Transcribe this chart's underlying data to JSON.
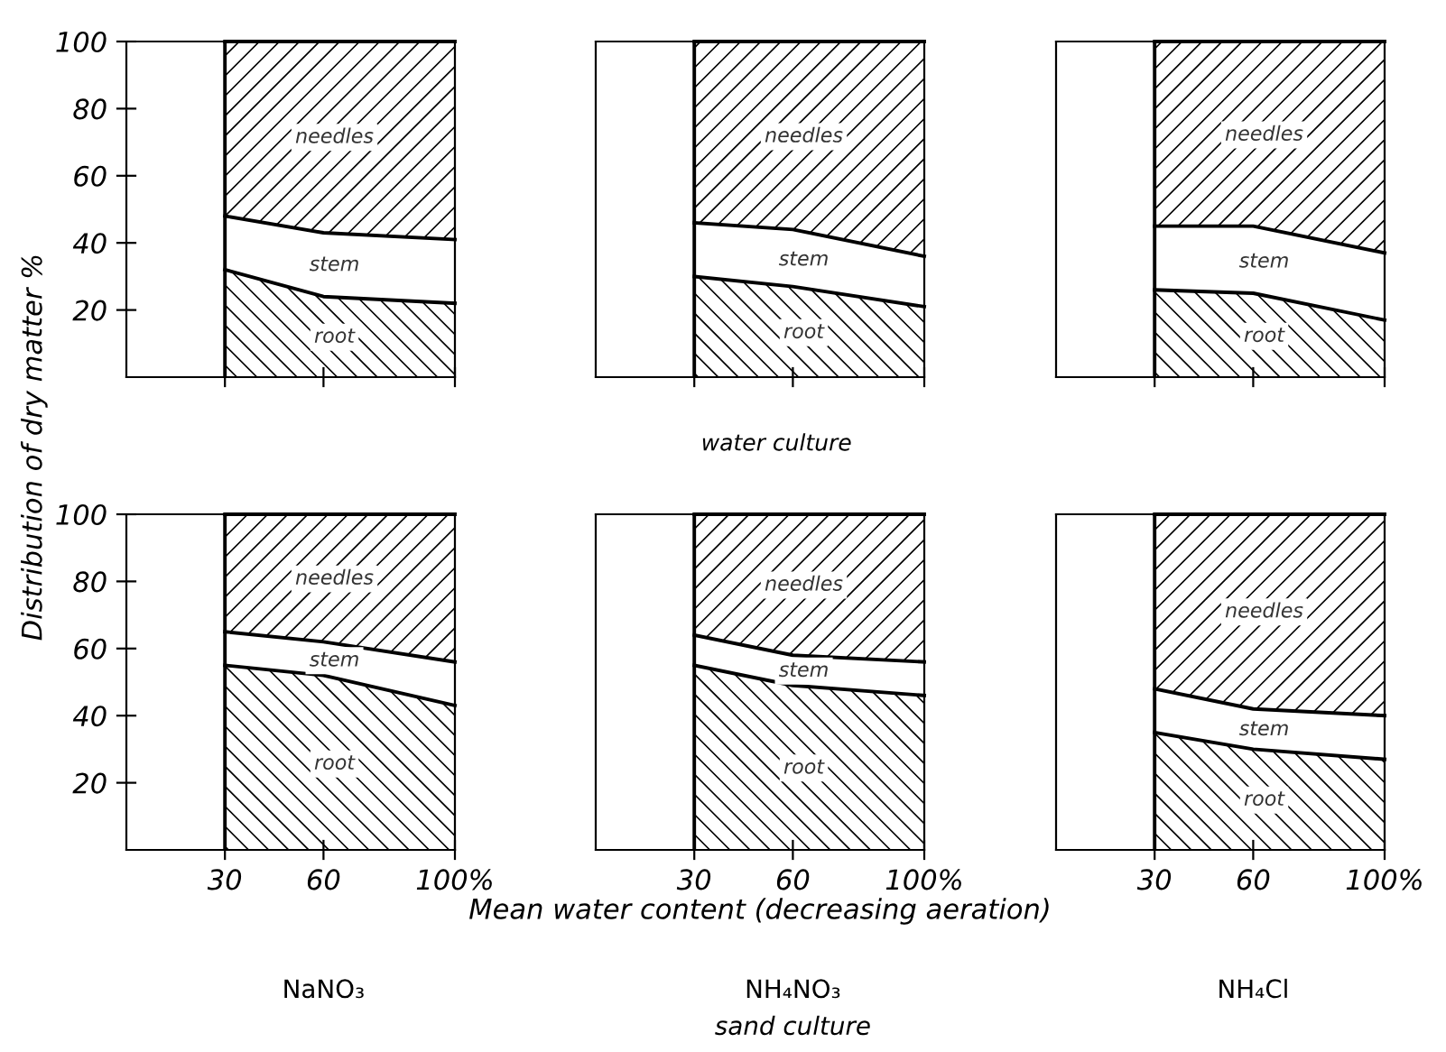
{
  "chart_data": [
    {
      "type": "area",
      "stacked": true,
      "x": [
        30,
        60,
        100
      ],
      "xlim": [
        0,
        100
      ],
      "ylim": [
        0,
        100
      ],
      "xticks": [
        {
          "value": 30,
          "label": null
        },
        {
          "value": 60,
          "label": null
        },
        {
          "value": 100,
          "label": null
        }
      ],
      "yticks": [
        20,
        40,
        60,
        80,
        100
      ],
      "tick_labels": "y",
      "series": [
        {
          "name": "root",
          "color": "#000000",
          "values": [
            32,
            24,
            22
          ]
        },
        {
          "name": "stem",
          "color": "#000000",
          "values": [
            16,
            19,
            19
          ]
        },
        {
          "name": "needles",
          "color": "#000000",
          "values": [
            52,
            57,
            59
          ]
        }
      ]
    },
    {
      "type": "area",
      "stacked": true,
      "x": [
        30,
        60,
        100
      ],
      "xlim": [
        0,
        100
      ],
      "ylim": [
        0,
        100
      ],
      "xticks": [
        {
          "value": 30,
          "label": null
        },
        {
          "value": 60,
          "label": null
        },
        {
          "value": 100,
          "label": null
        }
      ],
      "tick_labels": false,
      "annotations": [
        "water culture"
      ],
      "series": [
        {
          "name": "root",
          "color": "#000000",
          "values": [
            30,
            27,
            21
          ]
        },
        {
          "name": "stem",
          "color": "#000000",
          "values": [
            16,
            17,
            15
          ]
        },
        {
          "name": "needles",
          "color": "#000000",
          "values": [
            54,
            56,
            64
          ]
        }
      ]
    },
    {
      "type": "area",
      "stacked": true,
      "x": [
        30,
        60,
        100
      ],
      "xlim": [
        0,
        100
      ],
      "ylim": [
        0,
        100
      ],
      "xticks": [
        {
          "value": 30,
          "label": null
        },
        {
          "value": 60,
          "label": null
        },
        {
          "value": 100,
          "label": null
        }
      ],
      "tick_labels": false,
      "series": [
        {
          "name": "root",
          "color": "#000000",
          "values": [
            26,
            25,
            17
          ]
        },
        {
          "name": "stem",
          "color": "#000000",
          "values": [
            19,
            20,
            20
          ]
        },
        {
          "name": "needles",
          "color": "#000000",
          "values": [
            55,
            55,
            63
          ]
        }
      ]
    },
    {
      "type": "area",
      "stacked": true,
      "x": [
        30,
        60,
        100
      ],
      "xlim": [
        0,
        100
      ],
      "ylim": [
        0,
        100
      ],
      "xticks": [
        30,
        60,
        {
          "value": 100,
          "label": "100%"
        }
      ],
      "yticks": [
        20,
        40,
        60,
        80,
        100
      ],
      "ylabel": "Distribution of dry matter %",
      "annotations": [
        "NaNO₃"
      ],
      "series": [
        {
          "name": "root",
          "color": "#000000",
          "values": [
            55,
            52,
            43
          ]
        },
        {
          "name": "stem",
          "color": "#000000",
          "values": [
            10,
            10,
            13
          ]
        },
        {
          "name": "needles",
          "color": "#000000",
          "values": [
            35,
            38,
            44
          ]
        }
      ]
    },
    {
      "type": "area",
      "stacked": true,
      "x": [
        30,
        60,
        100
      ],
      "xlim": [
        0,
        100
      ],
      "ylim": [
        0,
        100
      ],
      "xticks": [
        30,
        60,
        {
          "value": 100,
          "label": "100%"
        }
      ],
      "tick_labels": "x",
      "xlabel": "Mean water content (decreasing aeration)",
      "annotations": [
        "NH₄NO₃",
        "sand culture"
      ],
      "series": [
        {
          "name": "root",
          "color": "#000000",
          "values": [
            55,
            49,
            46
          ]
        },
        {
          "name": "stem",
          "color": "#000000",
          "values": [
            9,
            9,
            10
          ]
        },
        {
          "name": "needles",
          "color": "#000000",
          "values": [
            36,
            42,
            44
          ]
        }
      ]
    },
    {
      "type": "area",
      "stacked": true,
      "x": [
        30,
        60,
        100
      ],
      "xlim": [
        0,
        100
      ],
      "ylim": [
        0,
        100
      ],
      "xticks": [
        30,
        60,
        {
          "value": 100,
          "label": "100%"
        }
      ],
      "tick_labels": "x",
      "annotations": [
        "NH₄Cl"
      ],
      "series": [
        {
          "name": "root",
          "color": "#000000",
          "values": [
            35,
            30,
            27
          ]
        },
        {
          "name": "stem",
          "color": "#000000",
          "values": [
            13,
            12,
            13
          ]
        },
        {
          "name": "needles",
          "color": "#000000",
          "values": [
            52,
            58,
            60
          ]
        }
      ]
    }
  ]
}
